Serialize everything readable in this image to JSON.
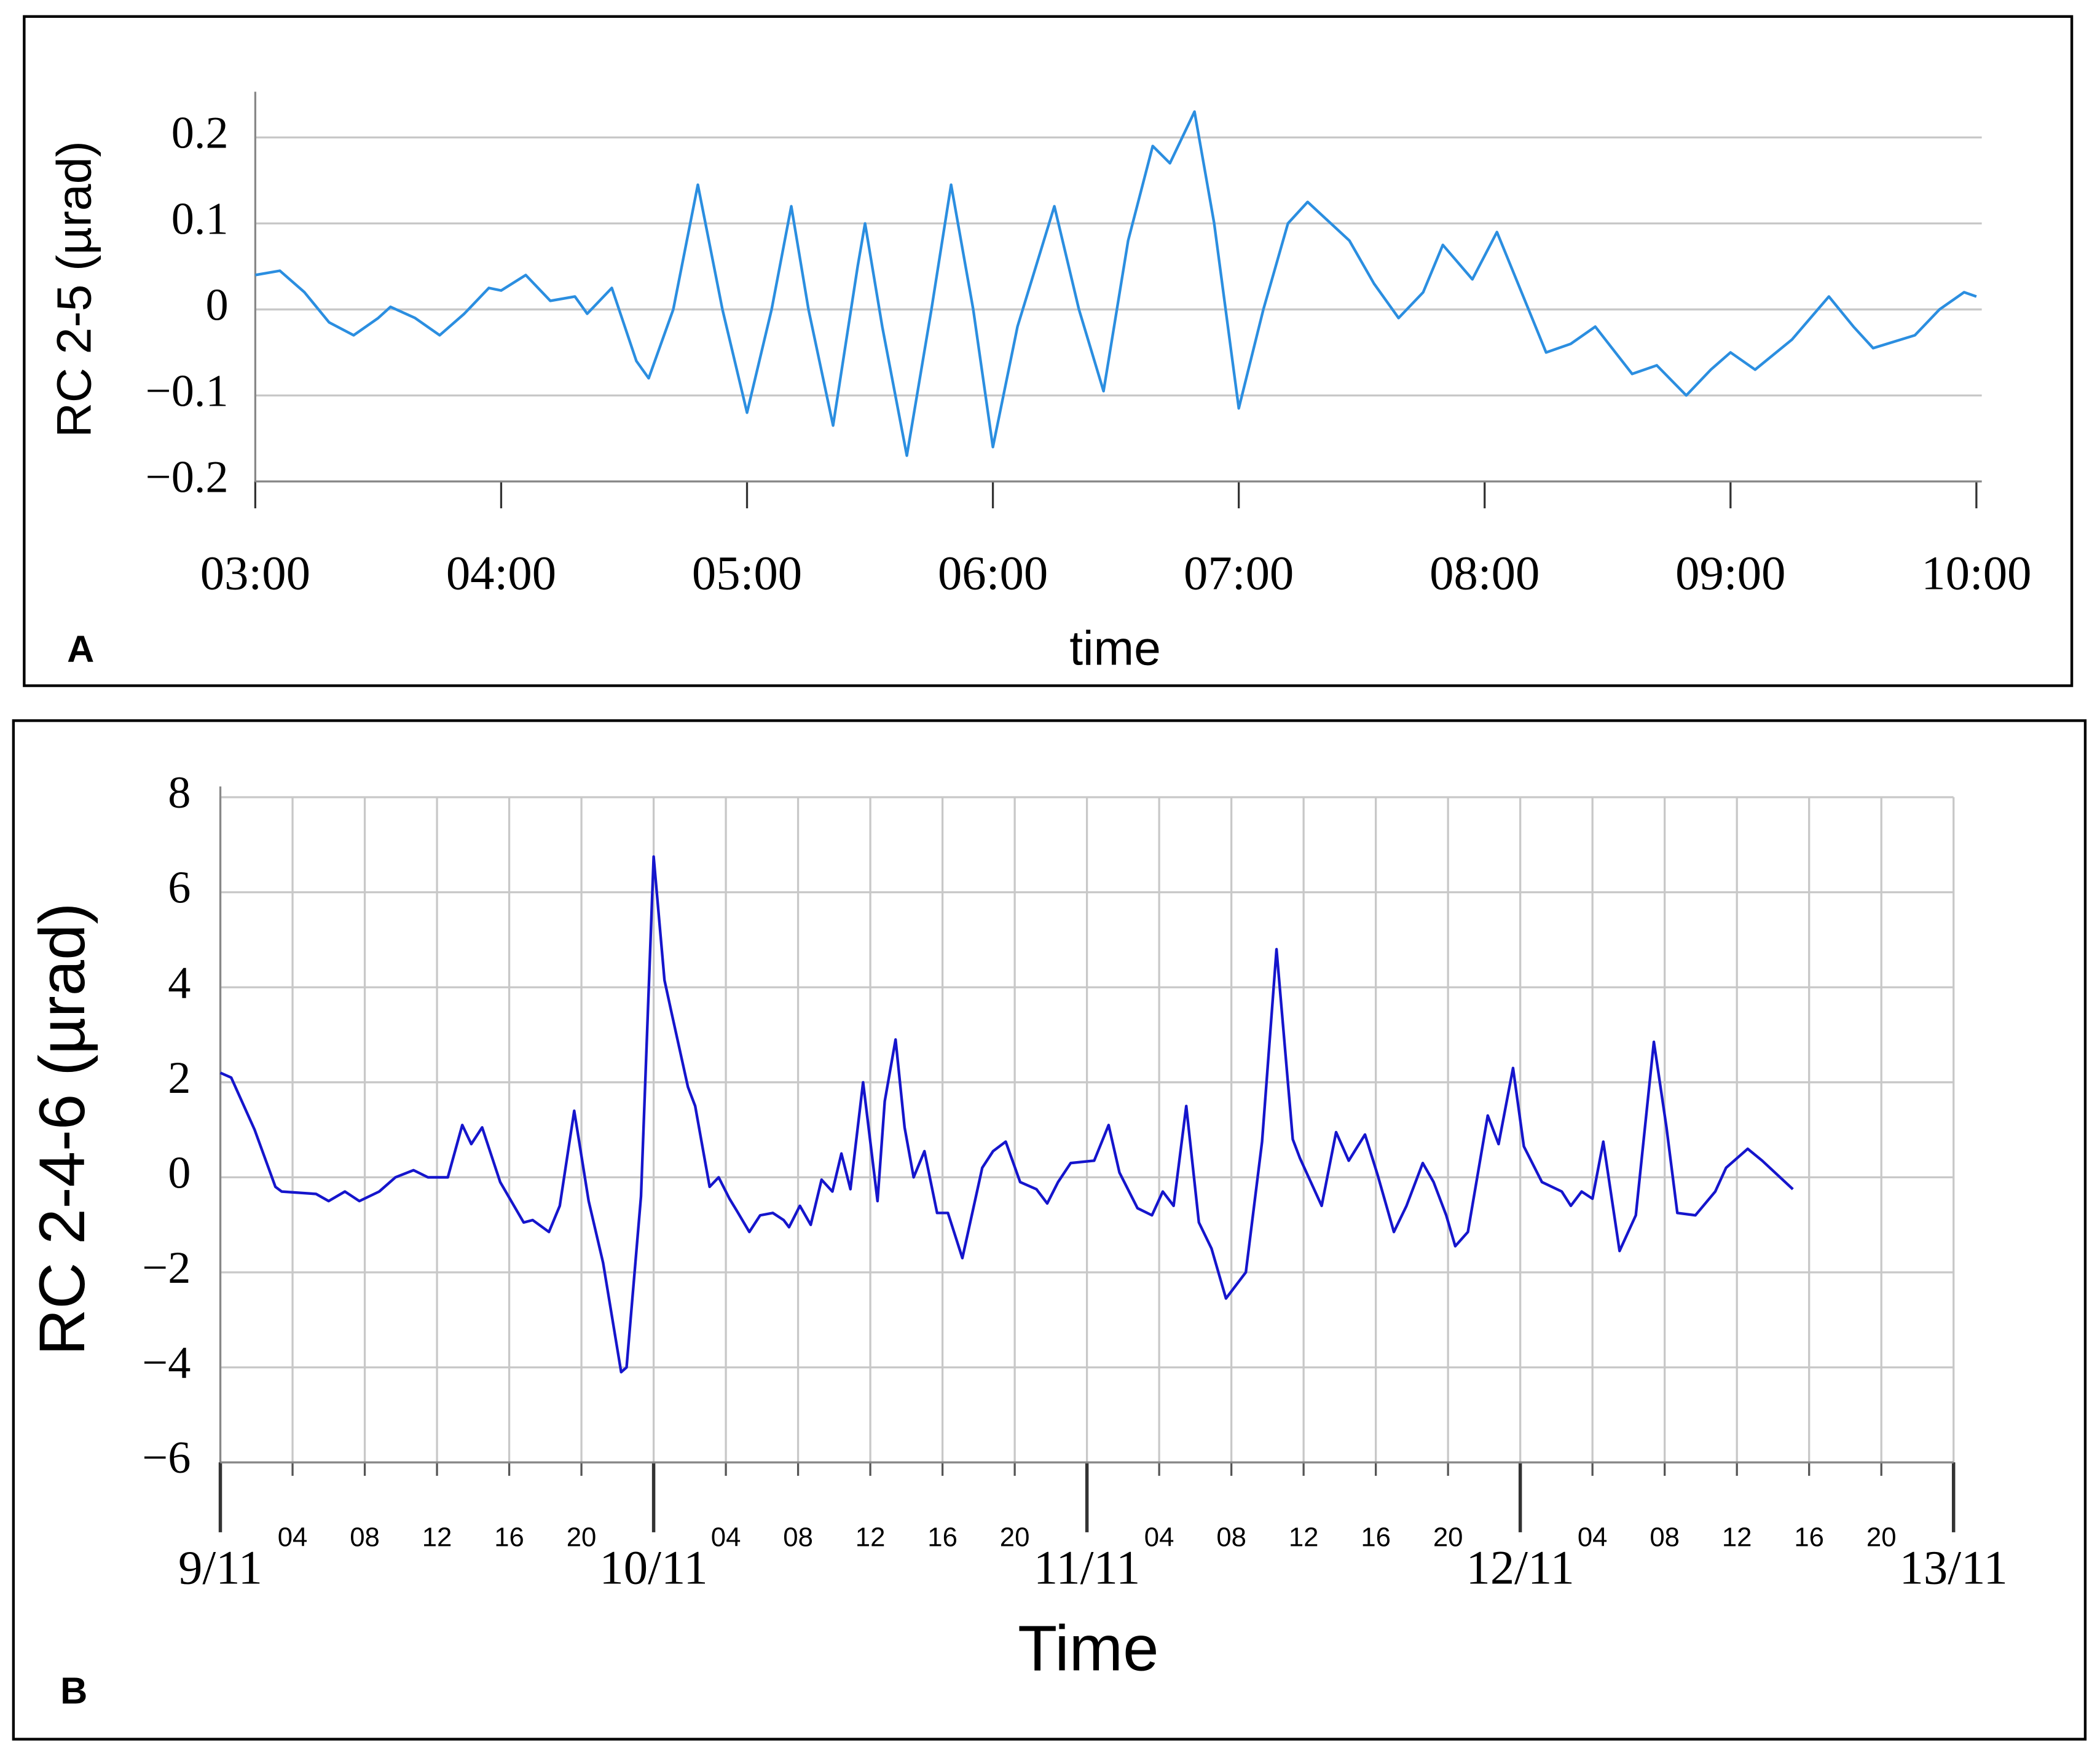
{
  "chart_data": [
    {
      "type": "line",
      "panel_label": "A",
      "xlabel": "time",
      "ylabel": "RC 2-5 (µrad)",
      "color": "#2b8ee0",
      "grid": [
        "y"
      ],
      "xlim": [
        3,
        10
      ],
      "xticks": [
        {
          "value": 3,
          "label": "03:00"
        },
        {
          "value": 4,
          "label": "04:00"
        },
        {
          "value": 5,
          "label": "05:00"
        },
        {
          "value": 6,
          "label": "06:00"
        },
        {
          "value": 7,
          "label": "07:00"
        },
        {
          "value": 8,
          "label": "08:00"
        },
        {
          "value": 9,
          "label": "09:00"
        },
        {
          "value": 10,
          "label": "10:00"
        }
      ],
      "ylim": [
        -0.2,
        0.25
      ],
      "yticks": [
        {
          "value": -0.2,
          "label": "−0.2"
        },
        {
          "value": -0.1,
          "label": "−0.1"
        },
        0,
        0.1,
        0.2
      ],
      "x": [
        3.0,
        3.1,
        3.2,
        3.3,
        3.4,
        3.5,
        3.55,
        3.65,
        3.75,
        3.85,
        3.95,
        4.0,
        4.1,
        4.2,
        4.3,
        4.35,
        4.45,
        4.55,
        4.6,
        4.7,
        4.8,
        4.9,
        5.0,
        5.1,
        5.18,
        5.25,
        5.35,
        5.45,
        5.48,
        5.55,
        5.65,
        5.75,
        5.83,
        5.92,
        6.0,
        6.1,
        6.25,
        6.35,
        6.45,
        6.55,
        6.65,
        6.72,
        6.82,
        6.9,
        7.0,
        7.1,
        7.2,
        7.28,
        7.45,
        7.55,
        7.65,
        7.75,
        7.83,
        7.95,
        8.05,
        8.15,
        8.25,
        8.35,
        8.45,
        8.6,
        8.7,
        8.82,
        8.92,
        9.0,
        9.1,
        9.25,
        9.4,
        9.5,
        9.58,
        9.75,
        9.85,
        9.95,
        10.0
      ],
      "values": [
        0.04,
        0.045,
        0.02,
        -0.015,
        -0.03,
        -0.01,
        0.003,
        -0.01,
        -0.03,
        -0.005,
        0.025,
        0.022,
        0.04,
        0.01,
        0.015,
        -0.005,
        0.025,
        -0.06,
        -0.08,
        0.0,
        0.145,
        0.0,
        -0.12,
        0.0,
        0.12,
        0.0,
        -0.135,
        0.05,
        0.1,
        -0.02,
        -0.17,
        0.0,
        0.145,
        0.0,
        -0.16,
        -0.02,
        0.12,
        0.0,
        -0.095,
        0.08,
        0.19,
        0.17,
        0.23,
        0.1,
        -0.115,
        0.0,
        0.1,
        0.125,
        0.08,
        0.03,
        -0.01,
        0.02,
        0.075,
        0.035,
        0.09,
        0.02,
        -0.05,
        -0.04,
        -0.02,
        -0.075,
        -0.065,
        -0.1,
        -0.07,
        -0.05,
        -0.07,
        -0.035,
        0.015,
        -0.02,
        -0.045,
        -0.03,
        0.0,
        0.02,
        0.015
      ]
    },
    {
      "type": "line",
      "panel_label": "B",
      "xlabel": "Time",
      "ylabel": "RC 2-4-6 (µrad)",
      "color": "#1515cc",
      "grid": [
        "x",
        "y"
      ],
      "xlim": [
        0,
        96
      ],
      "xticks": [
        {
          "value": 0,
          "label": "9/11"
        },
        {
          "value": 24,
          "label": "10/11"
        },
        {
          "value": 48,
          "label": "11/11"
        },
        {
          "value": 72,
          "label": "12/11"
        },
        {
          "value": 96,
          "label": "13/11"
        }
      ],
      "xticks_minor": [
        {
          "value": 4,
          "label": "04"
        },
        {
          "value": 8,
          "label": "08"
        },
        12,
        16,
        20,
        {
          "value": 28,
          "label": "04"
        },
        {
          "value": 32,
          "label": "08"
        },
        {
          "value": 36,
          "label": "12"
        },
        {
          "value": 40,
          "label": "16"
        },
        {
          "value": 44,
          "label": "20"
        },
        {
          "value": 52,
          "label": "04"
        },
        {
          "value": 56,
          "label": "08"
        },
        {
          "value": 60,
          "label": "12"
        },
        {
          "value": 64,
          "label": "16"
        },
        {
          "value": 68,
          "label": "20"
        },
        {
          "value": 76,
          "label": "04"
        },
        {
          "value": 80,
          "label": "08"
        },
        {
          "value": 84,
          "label": "12"
        },
        {
          "value": 88,
          "label": "16"
        },
        {
          "value": 92,
          "label": "20"
        }
      ],
      "ylim": [
        -6,
        8
      ],
      "yticks": [
        {
          "value": -6,
          "label": "−6"
        },
        {
          "value": -4,
          "label": "−4"
        },
        {
          "value": -2,
          "label": "−2"
        },
        0,
        2,
        4,
        6,
        8
      ],
      "x": [
        0,
        0.6,
        1.9,
        3.05,
        3.4,
        5.3,
        6.0,
        6.9,
        7.7,
        8.8,
        9.7,
        10.7,
        11.5,
        12.6,
        13.4,
        13.9,
        14.5,
        15.5,
        16.8,
        17.3,
        18.2,
        18.8,
        19.6,
        20.4,
        21.2,
        22.2,
        22.5,
        23.3,
        24.0,
        24.6,
        25.0,
        25.9,
        26.3,
        27.1,
        27.6,
        28.2,
        28.6,
        29.3,
        29.9,
        30.6,
        31.2,
        31.5,
        32.1,
        32.7,
        33.3,
        33.9,
        34.4,
        34.9,
        35.6,
        36.4,
        36.8,
        37.4,
        37.9,
        38.4,
        39.0,
        39.7,
        40.3,
        41.1,
        42.2,
        42.8,
        43.5,
        44.3,
        45.2,
        45.8,
        46.4,
        47.1,
        48.4,
        49.2,
        49.8,
        50.8,
        51.6,
        52.2,
        52.8,
        53.5,
        54.2,
        54.9,
        55.7,
        56.3,
        56.8,
        57.7,
        58.5,
        59.4,
        59.8,
        61.0,
        61.8,
        62.5,
        63.4,
        64.1,
        65.0,
        65.7,
        66.6,
        67.2,
        67.9,
        68.4,
        69.1,
        70.2,
        70.8,
        71.6,
        72.2,
        73.2,
        74.3,
        74.8,
        75.4,
        76.0,
        76.6,
        77.5,
        78.4,
        79.4,
        80.1,
        80.7,
        81.7,
        82.8,
        83.4,
        84.6,
        85.4,
        87.1
      ],
      "values": [
        2.2,
        2.1,
        1.0,
        -0.2,
        -0.3,
        -0.35,
        -0.5,
        -0.3,
        -0.5,
        -0.3,
        0.0,
        0.15,
        0.0,
        0.0,
        1.1,
        0.7,
        1.05,
        -0.1,
        -0.95,
        -0.9,
        -1.15,
        -0.6,
        1.4,
        -0.5,
        -1.8,
        -4.1,
        -4.0,
        -0.4,
        6.75,
        4.15,
        3.45,
        1.9,
        1.5,
        -0.2,
        0.0,
        -0.45,
        -0.7,
        -1.15,
        -0.8,
        -0.75,
        -0.9,
        -1.05,
        -0.6,
        -1.0,
        -0.05,
        -0.3,
        0.5,
        -0.25,
        2.0,
        -0.5,
        1.6,
        2.9,
        1.05,
        0.0,
        0.55,
        -0.75,
        -0.75,
        -1.7,
        0.2,
        0.55,
        0.75,
        -0.1,
        -0.25,
        -0.55,
        -0.1,
        0.3,
        0.35,
        1.1,
        0.1,
        -0.65,
        -0.8,
        -0.3,
        -0.6,
        1.5,
        -0.95,
        -1.5,
        -2.55,
        -2.25,
        -2.0,
        0.75,
        4.8,
        0.8,
        0.4,
        -0.6,
        0.95,
        0.35,
        0.9,
        0.05,
        -1.15,
        -0.6,
        0.3,
        -0.1,
        -0.8,
        -1.45,
        -1.15,
        1.3,
        0.7,
        2.3,
        0.65,
        -0.1,
        -0.3,
        -0.6,
        -0.3,
        -0.45,
        0.75,
        -1.55,
        -0.8,
        2.85,
        1.05,
        -0.75,
        -0.8,
        -0.3,
        0.2,
        0.6,
        0.35,
        -0.25
      ]
    }
  ]
}
